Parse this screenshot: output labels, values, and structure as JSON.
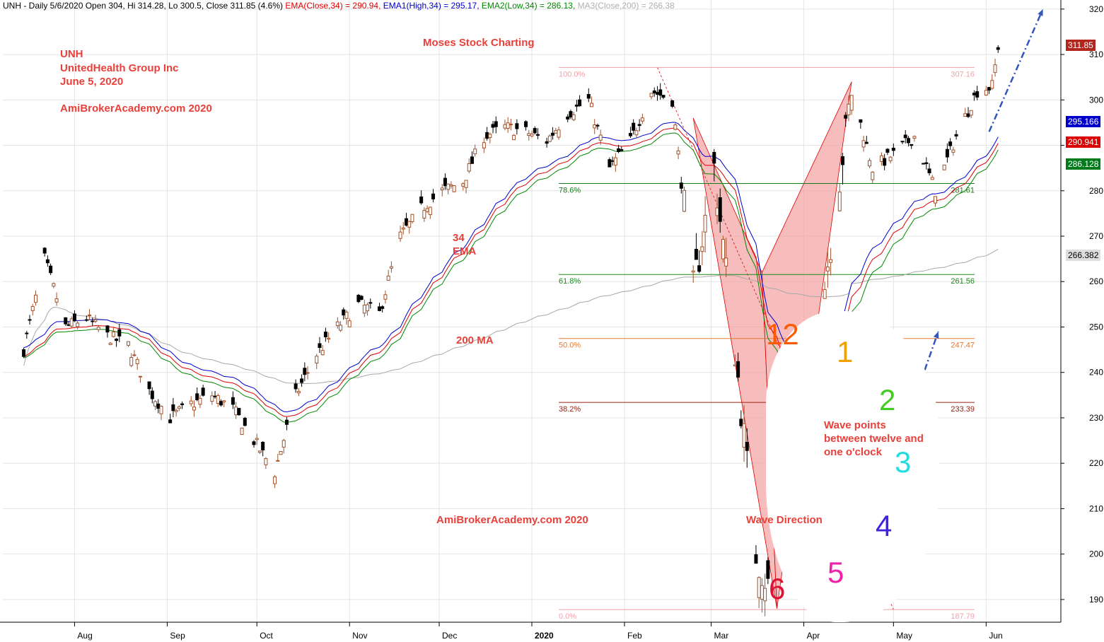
{
  "header": {
    "symbol_info": "UNH - Daily 5/6/2020 Open 304, Hi 314.28, Lo 300.5, Close 311.85 (4.6%)",
    "ema_close": "EMA(Close,34) = 290.94,",
    "ema_high": "EMA1(High,34) = 295.17,",
    "ema_low": "EMA2(Low,34) = 286.13,",
    "ma_close": "MA3(Close,200) = 266.38"
  },
  "notes": {
    "ticker": "UNH",
    "company": "UnitedHealth Group Inc",
    "date": "June 5, 2020",
    "site_top": "AmiBrokerAcademy.com  2020",
    "brand": "Moses Stock Charting",
    "ema_label_1": "34",
    "ema_label_2": "EMA",
    "ma_label": "200 MA",
    "site_bottom": "AmiBrokerAcademy.com  2020",
    "wave_direction": "Wave Direction",
    "wave_points_1": "Wave points",
    "wave_points_2": "between twelve and",
    "wave_points_3": "one o'clock"
  },
  "clock": {
    "n12": "12",
    "n1": "1",
    "n2": "2",
    "n3": "3",
    "n4": "4",
    "n5": "5",
    "n6": "6",
    "colors": {
      "n12": "#ff5a00",
      "n1": "#f0a000",
      "n2": "#44cc22",
      "n3": "#22dddd",
      "n4": "#4422dd",
      "n5": "#ee22aa",
      "n6": "#dd1133"
    }
  },
  "price_tags": {
    "close": "311.85",
    "ema_high": "295.166",
    "ema_close": "290.941",
    "ema_low": "286.128",
    "ma200": "266.382"
  },
  "colors": {
    "up": "#a0522d",
    "down": "#000000",
    "ema_close": "#dd0000",
    "ema_high": "#0000cc",
    "ema_low": "#008800",
    "ma200": "#a8a8a8",
    "fib_100": "#f4a0a8",
    "fib_786": "#1a7a1a",
    "fib_618": "#1a8a1a",
    "fib_500": "#e87830",
    "fib_382": "#992211",
    "fib_0": "#f4a0a8",
    "pattern_fill": "#f4a0a0",
    "arrow": "#3355bb"
  },
  "chart_data": {
    "type": "candlestick",
    "ylim": [
      185,
      322
    ],
    "y_ticks": [
      190,
      200,
      210,
      220,
      230,
      240,
      250,
      260,
      270,
      280,
      290,
      300,
      310,
      320
    ],
    "y_tick_labels": [
      "190",
      "200",
      "210",
      "220",
      "230",
      "240",
      "250",
      "260",
      "270",
      "280",
      "",
      "300",
      "310",
      "320"
    ],
    "x_labels": [
      "Aug",
      "Sep",
      "Oct",
      "Nov",
      "Dec",
      "2020",
      "Feb",
      "Mar",
      "Apr",
      "May",
      "Jun"
    ],
    "fib_levels": [
      {
        "pct": "100.0%",
        "value": "307.16",
        "price": 307.16
      },
      {
        "pct": "78.6%",
        "value": "281.61",
        "price": 281.61
      },
      {
        "pct": "61.8%",
        "value": "261.56",
        "price": 261.56
      },
      {
        "pct": "50.0%",
        "value": "247.47",
        "price": 247.47
      },
      {
        "pct": "38.2%",
        "value": "233.39",
        "price": 233.39
      },
      {
        "pct": "0.0%",
        "value": "187.79",
        "price": 187.79
      }
    ],
    "close_anchors": [
      [
        "2019-07-15",
        245
      ],
      [
        "2019-07-22",
        265
      ],
      [
        "2019-07-29",
        250
      ],
      [
        "2019-08-05",
        252
      ],
      [
        "2019-08-12",
        248
      ],
      [
        "2019-08-19",
        246
      ],
      [
        "2019-08-26",
        236
      ],
      [
        "2019-09-02",
        230
      ],
      [
        "2019-09-09",
        233
      ],
      [
        "2019-09-16",
        235
      ],
      [
        "2019-09-23",
        232
      ],
      [
        "2019-09-30",
        225
      ],
      [
        "2019-10-07",
        218
      ],
      [
        "2019-10-14",
        235
      ],
      [
        "2019-10-21",
        244
      ],
      [
        "2019-10-28",
        250
      ],
      [
        "2019-11-04",
        255
      ],
      [
        "2019-11-11",
        253
      ],
      [
        "2019-11-18",
        270
      ],
      [
        "2019-11-25",
        276
      ],
      [
        "2019-12-02",
        280
      ],
      [
        "2019-12-09",
        282
      ],
      [
        "2019-12-16",
        292
      ],
      [
        "2019-12-23",
        294
      ],
      [
        "2019-12-30",
        293
      ],
      [
        "2020-01-06",
        291
      ],
      [
        "2020-01-13",
        297
      ],
      [
        "2020-01-20",
        300
      ],
      [
        "2020-01-27",
        285
      ],
      [
        "2020-02-03",
        291
      ],
      [
        "2020-02-10",
        302
      ],
      [
        "2020-02-17",
        300
      ],
      [
        "2020-02-24",
        258
      ],
      [
        "2020-03-02",
        285
      ],
      [
        "2020-03-09",
        245
      ],
      [
        "2020-03-16",
        200
      ],
      [
        "2020-03-20",
        193
      ],
      [
        "2020-03-23",
        205
      ],
      [
        "2020-03-30",
        240
      ],
      [
        "2020-04-03",
        227
      ],
      [
        "2020-04-06",
        250
      ],
      [
        "2020-04-13",
        283
      ],
      [
        "2020-04-17",
        302
      ],
      [
        "2020-04-24",
        285
      ],
      [
        "2020-05-01",
        288
      ],
      [
        "2020-05-08",
        292
      ],
      [
        "2020-05-15",
        280
      ],
      [
        "2020-05-22",
        292
      ],
      [
        "2020-05-29",
        302
      ],
      [
        "2020-06-03",
        303
      ],
      [
        "2020-06-05",
        311.85
      ]
    ],
    "pattern_points": [
      [
        "2020-02-24",
        296
      ],
      [
        "2020-03-18",
        262
      ],
      [
        "2020-03-23",
        188
      ],
      [
        "2020-04-17",
        304
      ]
    ],
    "fib_swing": [
      [
        "2020-02-12",
        307.16
      ],
      [
        "2020-05-01",
        187.79
      ]
    ],
    "arrows": [
      {
        "from": [
          "2020-06-02",
          293
        ],
        "to": [
          "2020-06-20",
          320
        ]
      },
      {
        "from": [
          "2020-05-01",
          221
        ],
        "to": [
          "2020-05-16",
          249
        ]
      }
    ]
  }
}
